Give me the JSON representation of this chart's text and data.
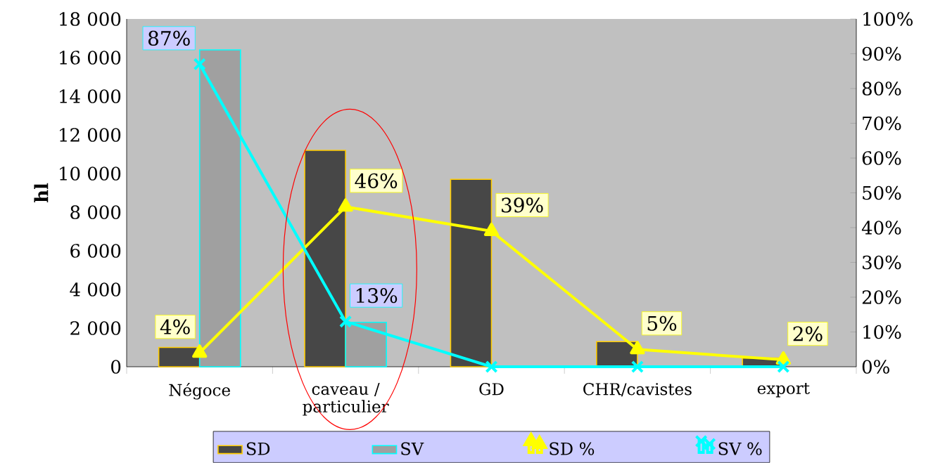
{
  "chart_data": {
    "type": "bar",
    "ylabel": "hl",
    "categories": [
      "Négoce",
      "caveau / particulier",
      "GD",
      "CHR/cavistes",
      "export"
    ],
    "ylim": [
      0,
      18000
    ],
    "yticks": [
      {
        "value": 0,
        "label": "0"
      },
      {
        "value": 2000,
        "label": "2 000"
      },
      {
        "value": 4000,
        "label": "4 000"
      },
      {
        "value": 6000,
        "label": "6 000"
      },
      {
        "value": 8000,
        "label": "8 000"
      },
      {
        "value": 10000,
        "label": "10 000"
      },
      {
        "value": 12000,
        "label": "12 000"
      },
      {
        "value": 14000,
        "label": "14 000"
      },
      {
        "value": 16000,
        "label": "16 000"
      },
      {
        "value": 18000,
        "label": "18 000"
      }
    ],
    "y2lim": [
      0,
      100
    ],
    "y2ticks": [
      {
        "value": 0,
        "label": "0%"
      },
      {
        "value": 10,
        "label": "10%"
      },
      {
        "value": 20,
        "label": "20%"
      },
      {
        "value": 30,
        "label": "30%"
      },
      {
        "value": 40,
        "label": "40%"
      },
      {
        "value": 50,
        "label": "50%"
      },
      {
        "value": 60,
        "label": "60%"
      },
      {
        "value": 70,
        "label": "70%"
      },
      {
        "value": 80,
        "label": "80%"
      },
      {
        "value": 90,
        "label": "90%"
      },
      {
        "value": 100,
        "label": "100%"
      }
    ],
    "legend": "bottom",
    "series": [
      {
        "name": "SD",
        "color": "#474747",
        "values": [
          1000,
          11200,
          9700,
          1300,
          450
        ]
      },
      {
        "name": "SV",
        "color": "#a0a0a0",
        "values": [
          16400,
          2300,
          null,
          null,
          null
        ]
      },
      {
        "name": "SD %",
        "type": "line",
        "axis": "y2",
        "color": "#ffff00",
        "marker": "triangle",
        "values": [
          4,
          46,
          39,
          5,
          2
        ],
        "value_labels": [
          "4%",
          "46%",
          "39%",
          "5%",
          "2%"
        ]
      },
      {
        "name": "SV %",
        "type": "line",
        "axis": "y2",
        "color": "#00ffff",
        "marker": "cross",
        "values": [
          87,
          13,
          0,
          0,
          0
        ],
        "value_labels": [
          "87%",
          "13%",
          null,
          null,
          null
        ]
      }
    ]
  }
}
